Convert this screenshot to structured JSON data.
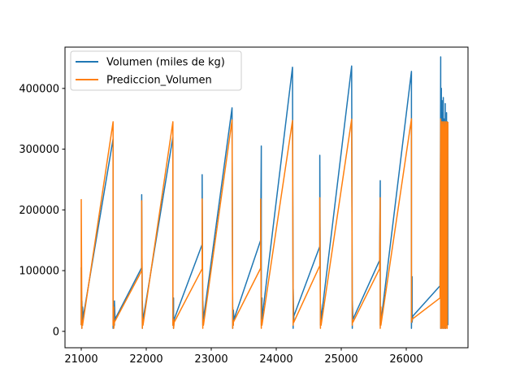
{
  "chart_data": {
    "type": "line",
    "title": "",
    "xlabel": "",
    "ylabel": "",
    "xlim": [
      20750,
      26950
    ],
    "ylim": [
      -27000,
      468000
    ],
    "xticks": [
      21000,
      22000,
      23000,
      24000,
      25000,
      26000
    ],
    "yticks": [
      0,
      100000,
      200000,
      300000,
      400000
    ],
    "legend": {
      "position": "top-left"
    },
    "series": [
      {
        "name": "Volumen (miles de kg)",
        "color": "#1f77b4",
        "x": [
          21000,
          21000,
          21010,
          21010,
          21020,
          21020,
          21030,
          21040,
          21490,
          21490,
          21500,
          21510,
          21510,
          21520,
          21930,
          21930,
          21940,
          21940,
          21950,
          21960,
          22410,
          22410,
          22420,
          22420,
          22430,
          22860,
          22860,
          22870,
          22870,
          22880,
          23320,
          23330,
          23330,
          23340,
          23340,
          23350,
          23760,
          23770,
          23770,
          23780,
          23780,
          24250,
          24260,
          24260,
          24270,
          24270,
          24670,
          24670,
          24680,
          24680,
          24690,
          25160,
          25170,
          25170,
          25180,
          25590,
          25600,
          25600,
          25610,
          25610,
          26080,
          26080,
          26090,
          26090,
          26100,
          26520,
          26530,
          26530,
          26540,
          26540,
          26550,
          26550,
          26560,
          26560,
          26570,
          26570,
          26580,
          26580,
          26590,
          26590,
          26600,
          26600,
          26610,
          26610,
          26620,
          26620,
          26630,
          26630,
          26640,
          26640
        ],
        "values": [
          10000,
          105000,
          5000,
          50000,
          10000,
          40000,
          20000,
          30000,
          317000,
          5000,
          30000,
          10000,
          50000,
          20000,
          105000,
          225000,
          5000,
          50000,
          15000,
          25000,
          320000,
          10000,
          55000,
          5000,
          20000,
          143000,
          258000,
          10000,
          50000,
          20000,
          368000,
          5000,
          40000,
          10000,
          35000,
          20000,
          150000,
          305000,
          10000,
          55000,
          20000,
          435000,
          5000,
          70000,
          15000,
          25000,
          140000,
          290000,
          10000,
          45000,
          20000,
          437000,
          5000,
          50000,
          20000,
          117000,
          248000,
          10000,
          30000,
          15000,
          428000,
          5000,
          90000,
          15000,
          25000,
          75000,
          452000,
          5000,
          400000,
          10000,
          380000,
          5000,
          360000,
          20000,
          385000,
          5000,
          350000,
          10000,
          330000,
          20000,
          375000,
          5000,
          340000,
          15000,
          360000,
          10000,
          345000,
          20000,
          340000,
          10000
        ]
      },
      {
        "name": "Prediccion_Volumen",
        "color": "#ff7f0e",
        "x": [
          21000,
          21000,
          21010,
          21010,
          21020,
          21490,
          21490,
          21500,
          21500,
          21510,
          21930,
          21930,
          21940,
          21940,
          21950,
          22410,
          22410,
          22420,
          22420,
          22430,
          22860,
          22860,
          22870,
          22870,
          22880,
          23320,
          23330,
          23330,
          23340,
          23340,
          23760,
          23760,
          23770,
          23770,
          23780,
          24250,
          24260,
          24260,
          24270,
          24670,
          24670,
          24680,
          24680,
          24690,
          25160,
          25170,
          25170,
          25180,
          25590,
          25600,
          25600,
          25610,
          25610,
          26080,
          26080,
          26090,
          26520,
          26530,
          26530,
          26540,
          26540,
          26550,
          26550,
          26560,
          26560,
          26570,
          26570,
          26580,
          26580,
          26590,
          26590,
          26600,
          26600,
          26610,
          26610,
          26620,
          26620,
          26630,
          26630,
          26640
        ],
        "values": [
          10000,
          217000,
          5000,
          20000,
          10000,
          345000,
          10000,
          40000,
          5000,
          15000,
          100000,
          215000,
          5000,
          25000,
          10000,
          345000,
          10000,
          20000,
          5000,
          15000,
          103000,
          218000,
          5000,
          20000,
          10000,
          348000,
          5000,
          20000,
          10000,
          15000,
          104000,
          218000,
          5000,
          20000,
          10000,
          347000,
          10000,
          20000,
          15000,
          108000,
          220000,
          5000,
          20000,
          10000,
          349000,
          10000,
          20000,
          15000,
          103000,
          220000,
          5000,
          40000,
          10000,
          350000,
          15000,
          20000,
          55000,
          350000,
          5000,
          345000,
          10000,
          340000,
          5000,
          345000,
          10000,
          340000,
          5000,
          345000,
          10000,
          335000,
          5000,
          345000,
          10000,
          340000,
          5000,
          345000,
          10000,
          340000,
          5000,
          345000
        ]
      }
    ]
  }
}
